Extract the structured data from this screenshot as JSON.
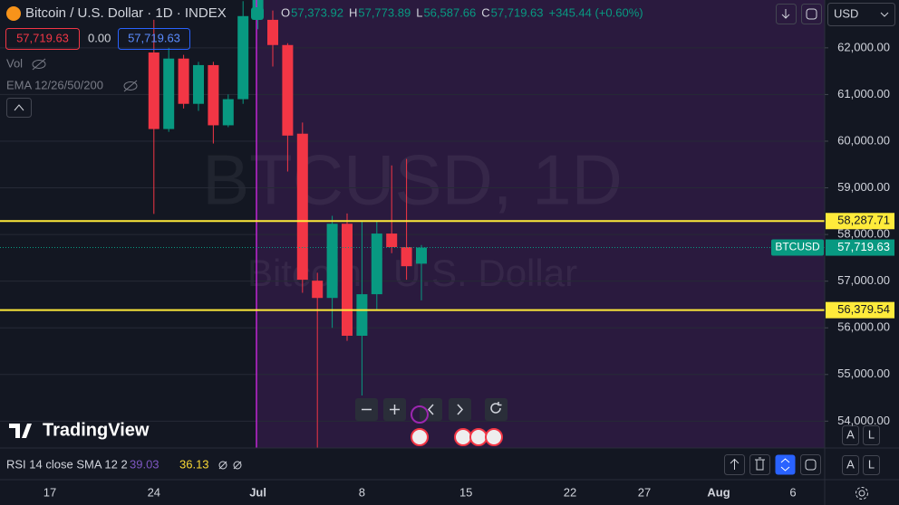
{
  "chart_data": {
    "type": "candlestick",
    "legend": {
      "title": "Bitcoin / U.S. Dollar · 1D · INDEX",
      "items": [
        {
          "key": "O",
          "value": "57,373.92"
        },
        {
          "key": "H",
          "value": "57,773.89"
        },
        {
          "key": "L",
          "value": "56,587.66"
        },
        {
          "key": "C",
          "value": "57,719.63"
        }
      ],
      "change": "+345.44 (+0.60%)",
      "sell": "57,719.63",
      "spread": "0.00",
      "buy": "57,719.63",
      "indicators": [
        "Vol",
        "EMA 12/26/50/200"
      ]
    },
    "watermark": {
      "symbol": "BTCUSD, 1D",
      "description": "Bitcoin / U.S. Dollar"
    },
    "brand": "TradingView",
    "currency": "USD",
    "rsi": {
      "label": "RSI 14 close SMA 12 2",
      "value": "39.03",
      "sma": "36.13"
    },
    "buttons": [
      "A",
      "L"
    ],
    "up_color": "#089981",
    "down_color": "#f23645",
    "categories": [
      null,
      null,
      null,
      "17",
      null,
      null,
      null,
      null,
      null,
      null,
      "24",
      null,
      null,
      null,
      null,
      null,
      null,
      "Jul",
      null,
      null,
      null,
      null,
      null,
      null,
      "8",
      null,
      null,
      null,
      null,
      null,
      null,
      "15",
      null,
      null,
      null,
      null,
      null,
      null,
      "22",
      null,
      null,
      null,
      null,
      "27",
      null,
      null,
      null,
      null,
      "Aug",
      null,
      null,
      null,
      null,
      "6",
      null,
      null
    ],
    "open": [
      null,
      null,
      null,
      null,
      null,
      null,
      null,
      null,
      null,
      null,
      61900,
      60260,
      61770,
      60800,
      61630,
      60340,
      60900,
      62680,
      62600,
      62060,
      60160,
      57010,
      56640,
      58230,
      55830,
      56720,
      58020,
      57730,
      57373.92,
      null,
      null,
      null,
      null,
      null,
      null,
      null,
      null,
      null,
      null,
      null,
      null,
      null,
      null,
      null,
      null,
      null,
      null,
      null,
      null,
      null,
      null,
      null,
      null,
      null,
      null,
      null
    ],
    "high": [
      null,
      null,
      null,
      null,
      null,
      null,
      null,
      null,
      null,
      null,
      62600,
      62000,
      61850,
      61700,
      61700,
      61000,
      63000,
      63500,
      62800,
      62100,
      60400,
      57180,
      58400,
      58450,
      58280,
      58290,
      59480,
      59620,
      57773.89,
      null,
      null,
      null,
      null,
      null,
      null,
      null,
      null,
      null,
      null,
      null,
      null,
      null,
      null,
      null,
      null,
      null,
      null,
      null,
      null,
      null,
      null,
      null,
      null,
      null,
      null,
      null
    ],
    "low": [
      null,
      null,
      null,
      null,
      null,
      null,
      null,
      null,
      null,
      null,
      58440,
      60200,
      60700,
      60650,
      59950,
      60300,
      60800,
      62400,
      61600,
      59350,
      56750,
      53300,
      56000,
      55720,
      54550,
      56400,
      57600,
      57030,
      56587.66,
      null,
      null,
      null,
      null,
      null,
      null,
      null,
      null,
      null,
      null,
      null,
      null,
      null,
      null,
      null,
      null,
      null,
      null,
      null,
      null,
      null,
      null,
      null,
      null,
      null,
      null,
      null
    ],
    "close": [
      null,
      null,
      null,
      null,
      null,
      null,
      null,
      null,
      null,
      null,
      60260,
      61770,
      60800,
      61630,
      60340,
      60900,
      62680,
      63100,
      62060,
      60120,
      57030,
      56640,
      58230,
      55830,
      56720,
      58020,
      57730,
      57320,
      57719.63,
      null,
      null,
      null,
      null,
      null,
      null,
      null,
      null,
      null,
      null,
      null,
      null,
      null,
      null,
      null,
      null,
      null,
      null,
      null,
      null,
      null,
      null,
      null,
      null,
      null,
      null,
      null
    ],
    "ylim": [
      53425,
      63025
    ],
    "yticks": [
      {
        "value": 54000,
        "label": "54,000.00"
      },
      {
        "value": 55000,
        "label": "55,000.00"
      },
      {
        "value": 56000,
        "label": "56,000.00"
      },
      {
        "value": 57000,
        "label": "57,000.00"
      },
      {
        "value": 58000,
        "label": "58,000.00"
      },
      {
        "value": 59000,
        "label": "59,000.00"
      },
      {
        "value": 60000,
        "label": "60,000.00"
      },
      {
        "value": 61000,
        "label": "61,000.00"
      },
      {
        "value": 62000,
        "label": "62,000.00"
      }
    ],
    "hlines": [
      {
        "value": 58287.71,
        "label": "58,287.71",
        "color": "#ffeb3b"
      },
      {
        "value": 56379.54,
        "label": "56,379.54",
        "color": "#ffeb3b"
      }
    ],
    "price_line": {
      "name": "BTCUSD",
      "value": 57719.63,
      "label": "57,719.63"
    },
    "grid": true
  }
}
